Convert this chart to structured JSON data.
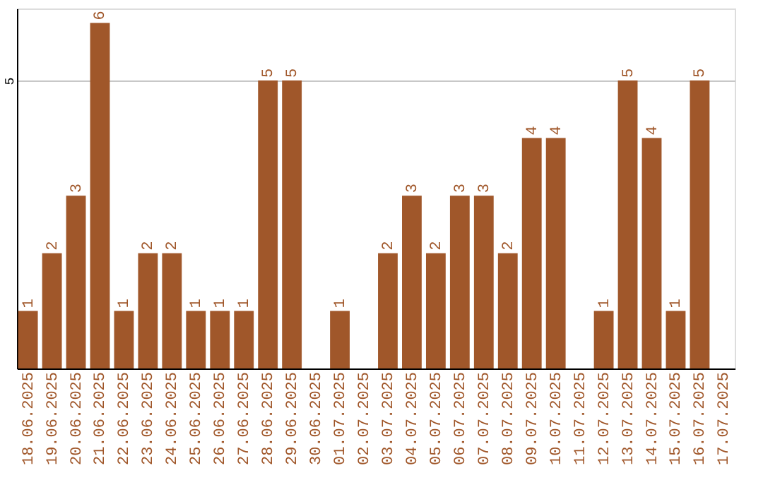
{
  "chart_data": {
    "type": "bar",
    "categories": [
      "18.06.2025",
      "19.06.2025",
      "20.06.2025",
      "21.06.2025",
      "22.06.2025",
      "23.06.2025",
      "24.06.2025",
      "25.06.2025",
      "26.06.2025",
      "27.06.2025",
      "28.06.2025",
      "29.06.2025",
      "30.06.2025",
      "01.07.2025",
      "02.07.2025",
      "03.07.2025",
      "04.07.2025",
      "05.07.2025",
      "06.07.2025",
      "07.07.2025",
      "08.07.2025",
      "09.07.2025",
      "10.07.2025",
      "11.07.2025",
      "12.07.2025",
      "13.07.2025",
      "14.07.2025",
      "15.07.2025",
      "16.07.2025",
      "17.07.2025"
    ],
    "values": [
      1,
      2,
      3,
      6,
      1,
      2,
      2,
      1,
      1,
      1,
      5,
      5,
      0,
      1,
      0,
      2,
      3,
      2,
      3,
      3,
      2,
      4,
      4,
      0,
      1,
      5,
      4,
      1,
      5,
      0
    ],
    "value_labels": [
      "1",
      "2",
      "3",
      "6",
      "1",
      "2",
      "2",
      "1",
      "1",
      "1",
      "5",
      "5",
      null,
      "1",
      null,
      "2",
      "3",
      "2",
      "3",
      "3",
      "2",
      "4",
      "4",
      null,
      "1",
      "5",
      "4",
      "1",
      "5",
      null
    ],
    "color": "#a0572a",
    "ylim": [
      0,
      6.25
    ],
    "yticks": [
      5
    ],
    "grid": "y"
  }
}
